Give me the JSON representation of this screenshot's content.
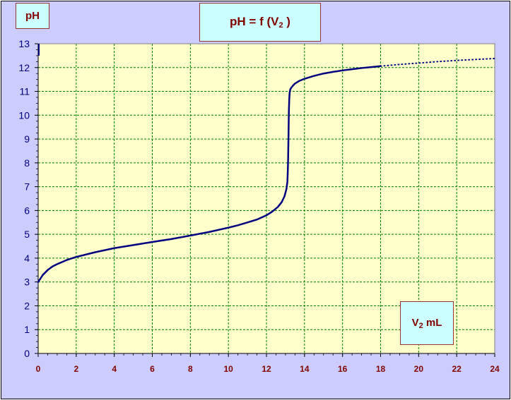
{
  "chart_data": {
    "type": "line",
    "title": {
      "prefix": "pH = f (V",
      "sub": "2",
      "suffix": " )"
    },
    "ylabel": "pH",
    "xlabel": {
      "prefix": "V",
      "sub": "2",
      "suffix": " mL"
    },
    "xlim": [
      0,
      24
    ],
    "ylim": [
      0,
      13
    ],
    "x_ticks": [
      0,
      2,
      4,
      6,
      8,
      10,
      12,
      14,
      16,
      18,
      20,
      22,
      24
    ],
    "y_ticks": [
      0,
      1,
      2,
      3,
      4,
      5,
      6,
      7,
      8,
      9,
      10,
      11,
      12,
      13
    ],
    "grid": true,
    "colors": {
      "plot_bg": "#ffffcc",
      "frame_bg": "#ccccff",
      "grid": "#008000",
      "line": "#000080",
      "ticks": "#800000",
      "label_box": "#ccffff"
    },
    "series": [
      {
        "style": "solid",
        "x": [
          0,
          0.1,
          0.25,
          0.5,
          0.75,
          1,
          1.5,
          2,
          3,
          4,
          5,
          6,
          7,
          8,
          9,
          10,
          10.5,
          11,
          11.5,
          12,
          12.3,
          12.6,
          12.8,
          12.95,
          13.05,
          13.1,
          13.12,
          13.14,
          13.16,
          13.18,
          13.2,
          13.22,
          13.25,
          13.3,
          13.4,
          13.5,
          13.7,
          14,
          14.5,
          15,
          15.5,
          16,
          16.5,
          17,
          17.5,
          18
        ],
        "y": [
          3.0,
          3.12,
          3.3,
          3.5,
          3.65,
          3.75,
          3.92,
          4.05,
          4.25,
          4.42,
          4.55,
          4.68,
          4.8,
          4.95,
          5.1,
          5.28,
          5.38,
          5.5,
          5.62,
          5.8,
          5.95,
          6.15,
          6.35,
          6.6,
          6.9,
          7.2,
          7.6,
          8.2,
          9.2,
          10.2,
          10.7,
          10.95,
          11.08,
          11.15,
          11.25,
          11.33,
          11.43,
          11.53,
          11.65,
          11.75,
          11.82,
          11.88,
          11.93,
          11.98,
          12.02,
          12.06
        ]
      },
      {
        "style": "dotted",
        "x": [
          18,
          19,
          20,
          21,
          22,
          23,
          24
        ],
        "y": [
          12.06,
          12.13,
          12.19,
          12.25,
          12.3,
          12.34,
          12.38
        ]
      }
    ]
  }
}
